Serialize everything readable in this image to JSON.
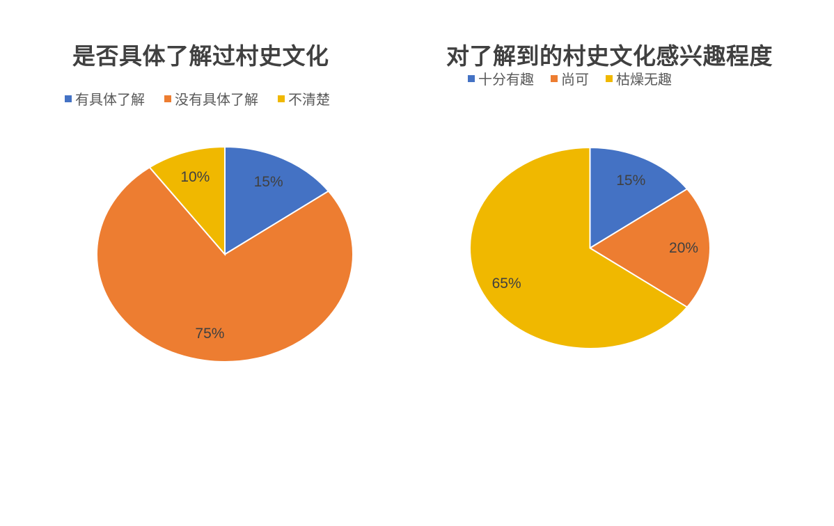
{
  "chart_data": [
    {
      "type": "pie",
      "title": "是否具体了解过村史文化",
      "categories": [
        "有具体了解",
        "没有具体了解",
        "不清楚"
      ],
      "values": [
        15,
        75,
        10
      ],
      "labels": [
        "15%",
        "75%",
        "10%"
      ],
      "colors": [
        "#4472C4",
        "#ED7D31",
        "#F0B800"
      ],
      "legend_position": "top",
      "start_angle": "12 o'clock, clockwise"
    },
    {
      "type": "pie",
      "title": "对了解到的村史文化感兴趣程度",
      "categories": [
        "十分有趣",
        "尚可",
        "枯燥无趣"
      ],
      "values": [
        15,
        20,
        65
      ],
      "labels": [
        "15%",
        "20%",
        "65%"
      ],
      "colors": [
        "#4472C4",
        "#ED7D31",
        "#F0B800"
      ],
      "legend_position": "top",
      "start_angle": "12 o'clock, clockwise"
    }
  ]
}
